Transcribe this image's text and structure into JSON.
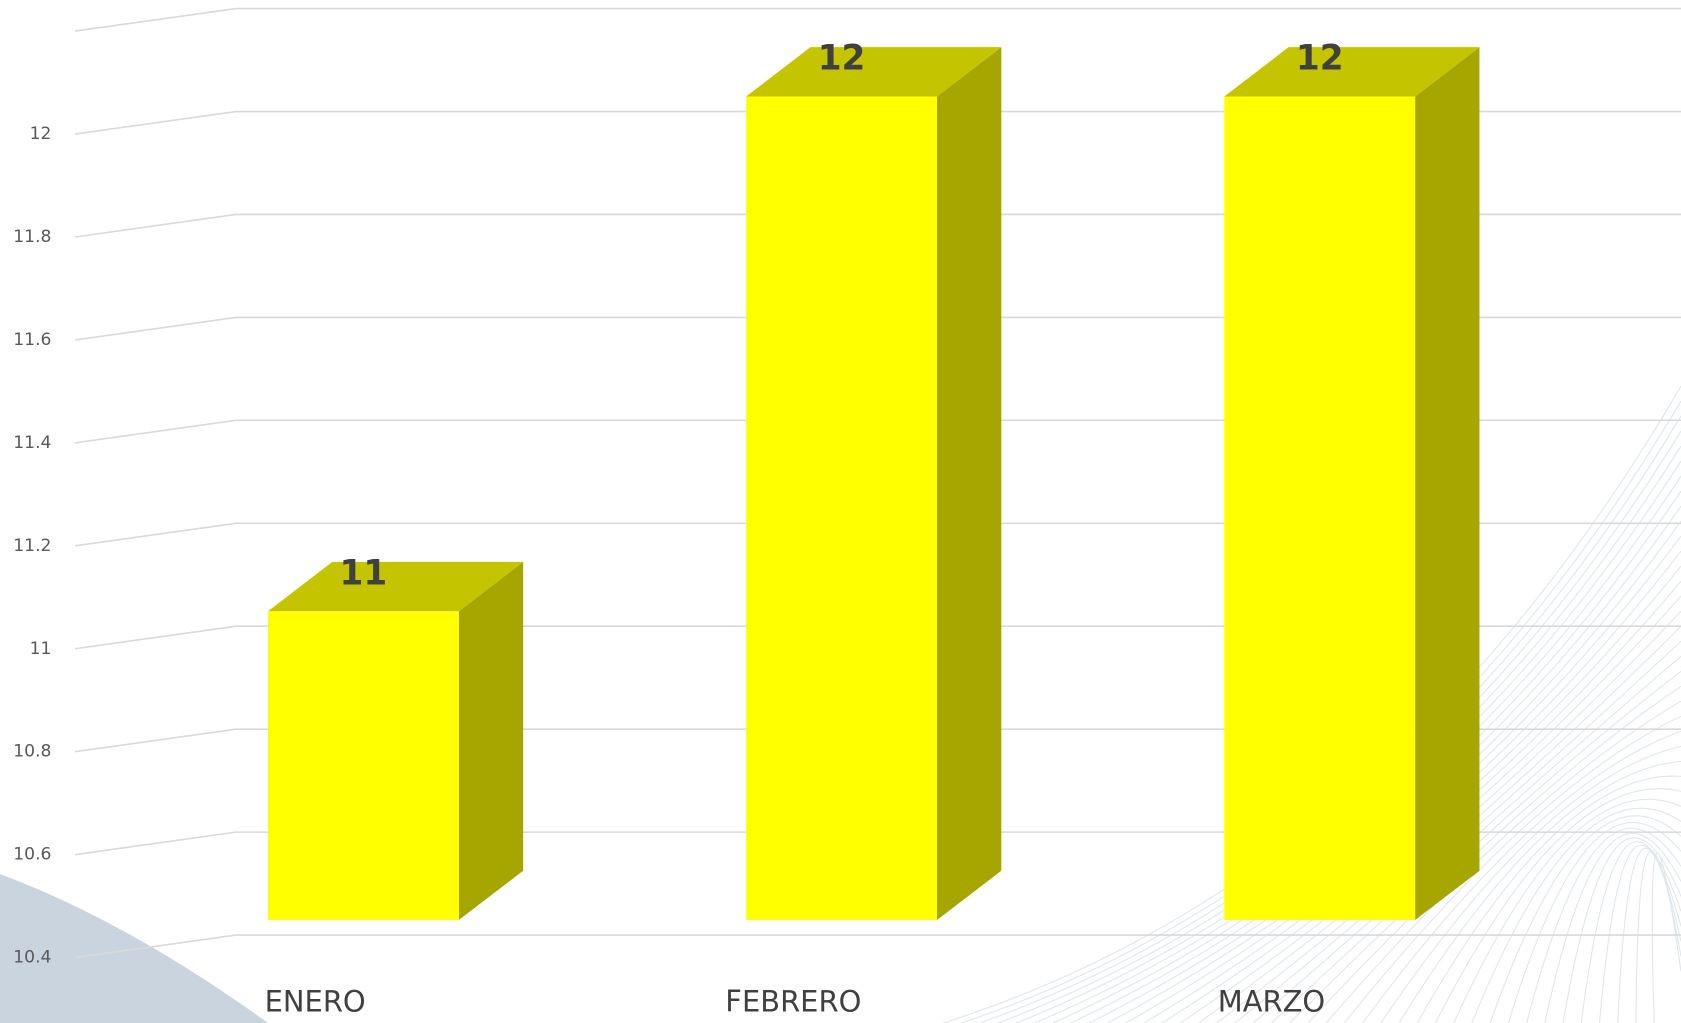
{
  "chart_data": {
    "type": "bar3d",
    "categories": [
      "ENERO",
      "FEBRERO",
      "MARZO"
    ],
    "values": [
      11,
      12,
      12
    ],
    "color": "#ffff00",
    "side_color": "#a6a600",
    "top_color": "#c4c400",
    "ylim": [
      10.4,
      12.2
    ],
    "yticks": [
      10.4,
      10.6,
      10.8,
      11,
      11.2,
      11.4,
      11.6,
      11.8,
      12
    ],
    "grid": true
  }
}
